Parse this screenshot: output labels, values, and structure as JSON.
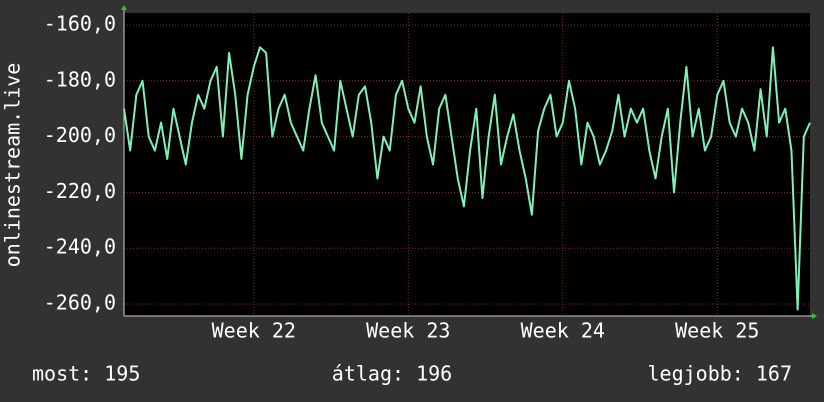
{
  "chart_data": {
    "type": "line",
    "ylabel": "onlinestream.live",
    "ylim": [
      -264.3,
      -155.7
    ],
    "yticks": [
      {
        "value": -160,
        "label": "-160,0"
      },
      {
        "value": -180,
        "label": "-180,0"
      },
      {
        "value": -200,
        "label": "-200,0"
      },
      {
        "value": -220,
        "label": "-220,0"
      },
      {
        "value": -240,
        "label": "-240,0"
      },
      {
        "value": -260,
        "label": "-260,0"
      }
    ],
    "xlim": [
      21.16,
      25.6
    ],
    "xticks": [
      {
        "value": 22,
        "label": "Week 22"
      },
      {
        "value": 23,
        "label": "Week 23"
      },
      {
        "value": 24,
        "label": "Week 24"
      },
      {
        "value": 25,
        "label": "Week 25"
      }
    ],
    "grid": true,
    "x": [
      21.16,
      21.2,
      21.24,
      21.28,
      21.32,
      21.36,
      21.4,
      21.44,
      21.48,
      21.52,
      21.56,
      21.6,
      21.64,
      21.68,
      21.72,
      21.76,
      21.8,
      21.84,
      21.88,
      21.92,
      21.96,
      22,
      22.04,
      22.08,
      22.12,
      22.16,
      22.2,
      22.24,
      22.28,
      22.32,
      22.36,
      22.4,
      22.44,
      22.48,
      22.52,
      22.56,
      22.6,
      22.64,
      22.68,
      22.72,
      22.76,
      22.8,
      22.84,
      22.88,
      22.92,
      22.96,
      23,
      23.04,
      23.08,
      23.12,
      23.16,
      23.2,
      23.24,
      23.28,
      23.32,
      23.36,
      23.4,
      23.44,
      23.48,
      23.52,
      23.56,
      23.6,
      23.64,
      23.68,
      23.72,
      23.76,
      23.8,
      23.84,
      23.88,
      23.92,
      23.96,
      24,
      24.04,
      24.08,
      24.12,
      24.16,
      24.2,
      24.24,
      24.28,
      24.32,
      24.36,
      24.4,
      24.44,
      24.48,
      24.52,
      24.56,
      24.6,
      24.64,
      24.68,
      24.72,
      24.76,
      24.8,
      24.84,
      24.88,
      24.92,
      24.96,
      25,
      25.04,
      25.08,
      25.12,
      25.16,
      25.2,
      25.24,
      25.28,
      25.32,
      25.36,
      25.4,
      25.44,
      25.48,
      25.52,
      25.56,
      25.6
    ],
    "series": [
      {
        "color": "#7ff0b8",
        "values": [
          -190,
          -205,
          -185,
          -180,
          -200,
          -205,
          -195,
          -208,
          -190,
          -200,
          -210,
          -195,
          -185,
          -190,
          -180,
          -175,
          -200,
          -170,
          -185,
          -208,
          -185,
          -175,
          -168,
          -170,
          -200,
          -190,
          -185,
          -195,
          -200,
          -205,
          -190,
          -178,
          -195,
          -200,
          -205,
          -180,
          -190,
          -200,
          -185,
          -182,
          -195,
          -215,
          -200,
          -205,
          -185,
          -180,
          -190,
          -195,
          -182,
          -200,
          -210,
          -190,
          -185,
          -200,
          -215,
          -225,
          -205,
          -190,
          -222,
          -200,
          -185,
          -210,
          -200,
          -192,
          -205,
          -215,
          -228,
          -198,
          -190,
          -185,
          -200,
          -195,
          -180,
          -190,
          -210,
          -195,
          -200,
          -210,
          -205,
          -198,
          -185,
          -200,
          -190,
          -195,
          -190,
          -205,
          -215,
          -200,
          -190,
          -220,
          -195,
          -175,
          -200,
          -190,
          -205,
          -200,
          -185,
          -180,
          -195,
          -200,
          -190,
          -195,
          -205,
          -183,
          -200,
          -168,
          -195,
          -190,
          -205,
          -262,
          -200,
          -195
        ]
      }
    ],
    "stats": [
      "most: 195",
      "átlag: 196",
      "legjobb: 167"
    ]
  }
}
